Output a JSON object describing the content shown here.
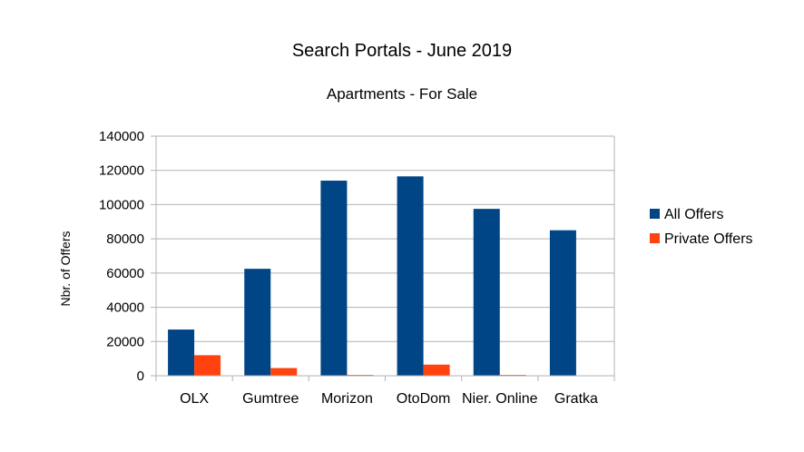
{
  "chart_data": {
    "type": "bar",
    "title": "Search Portals - June 2019",
    "subtitle": "Apartments - For Sale",
    "xlabel": "",
    "ylabel": "Nbr. of Offers",
    "ylim": [
      0,
      140000
    ],
    "yticks": [
      "0",
      "20000",
      "40000",
      "60000",
      "80000",
      "100000",
      "120000",
      "140000"
    ],
    "categories": [
      "OLX",
      "Gumtree",
      "Morizon",
      "OtoDom",
      "Nier. Online",
      "Gratka"
    ],
    "series": [
      {
        "name": "All Offers",
        "color": "#004586",
        "values": [
          27000,
          62500,
          114000,
          116500,
          97500,
          85000
        ]
      },
      {
        "name": "Private Offers",
        "color": "#ff420e",
        "values": [
          12000,
          4500,
          500,
          6500,
          500,
          0
        ]
      }
    ],
    "grid": true,
    "legend_position": "right"
  }
}
